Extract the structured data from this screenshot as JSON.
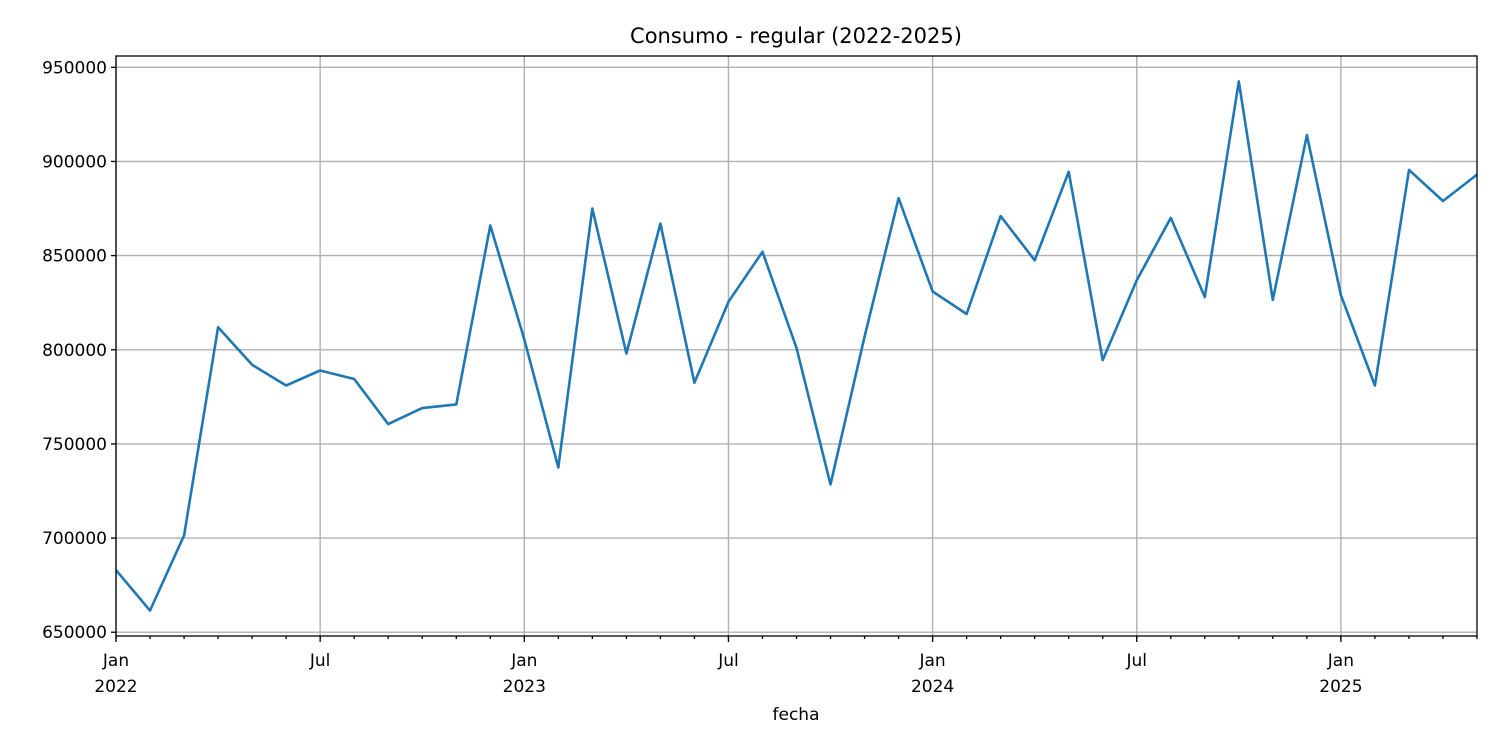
{
  "chart_data": {
    "type": "line",
    "title": "Consumo - regular (2022-2025)",
    "xlabel": "fecha",
    "ylabel": "",
    "grid": true,
    "ylim": [
      648000,
      956000
    ],
    "xlim": [
      "2022-01",
      "2025-05"
    ],
    "yticks": [
      650000,
      700000,
      750000,
      800000,
      850000,
      900000,
      950000
    ],
    "ytick_labels": [
      "650000",
      "700000",
      "750000",
      "800000",
      "850000",
      "900000",
      "950000"
    ],
    "xticks": [
      {
        "date": "2022-01",
        "label": "Jan",
        "year": "2022"
      },
      {
        "date": "2022-07",
        "label": "Jul",
        "year": ""
      },
      {
        "date": "2023-01",
        "label": "Jan",
        "year": "2023"
      },
      {
        "date": "2023-07",
        "label": "Jul",
        "year": ""
      },
      {
        "date": "2024-01",
        "label": "Jan",
        "year": "2024"
      },
      {
        "date": "2024-07",
        "label": "Jul",
        "year": ""
      },
      {
        "date": "2025-01",
        "label": "Jan",
        "year": "2025"
      }
    ],
    "x": [
      "2022-01",
      "2022-02",
      "2022-03",
      "2022-04",
      "2022-05",
      "2022-06",
      "2022-07",
      "2022-08",
      "2022-09",
      "2022-10",
      "2022-11",
      "2022-12",
      "2023-01",
      "2023-02",
      "2023-03",
      "2023-04",
      "2023-05",
      "2023-06",
      "2023-07",
      "2023-08",
      "2023-09",
      "2023-10",
      "2023-11",
      "2023-12",
      "2024-01",
      "2024-02",
      "2024-03",
      "2024-04",
      "2024-05",
      "2024-06",
      "2024-07",
      "2024-08",
      "2024-09",
      "2024-10",
      "2024-11",
      "2024-12",
      "2025-01",
      "2025-02",
      "2025-03",
      "2025-04",
      "2025-05"
    ],
    "series": [
      {
        "color": "#1f77b4",
        "values": [
          683000,
          661500,
          701500,
          812000,
          792000,
          781000,
          789000,
          784500,
          760500,
          769000,
          771000,
          866000,
          805500,
          737500,
          875000,
          798000,
          867000,
          782500,
          825500,
          852000,
          801000,
          728500,
          807000,
          880500,
          831000,
          819000,
          871000,
          847500,
          894500,
          794500,
          837000,
          870000,
          828000,
          942500,
          826500,
          914000,
          829000,
          781000,
          895500,
          879000,
          893000
        ]
      }
    ]
  }
}
